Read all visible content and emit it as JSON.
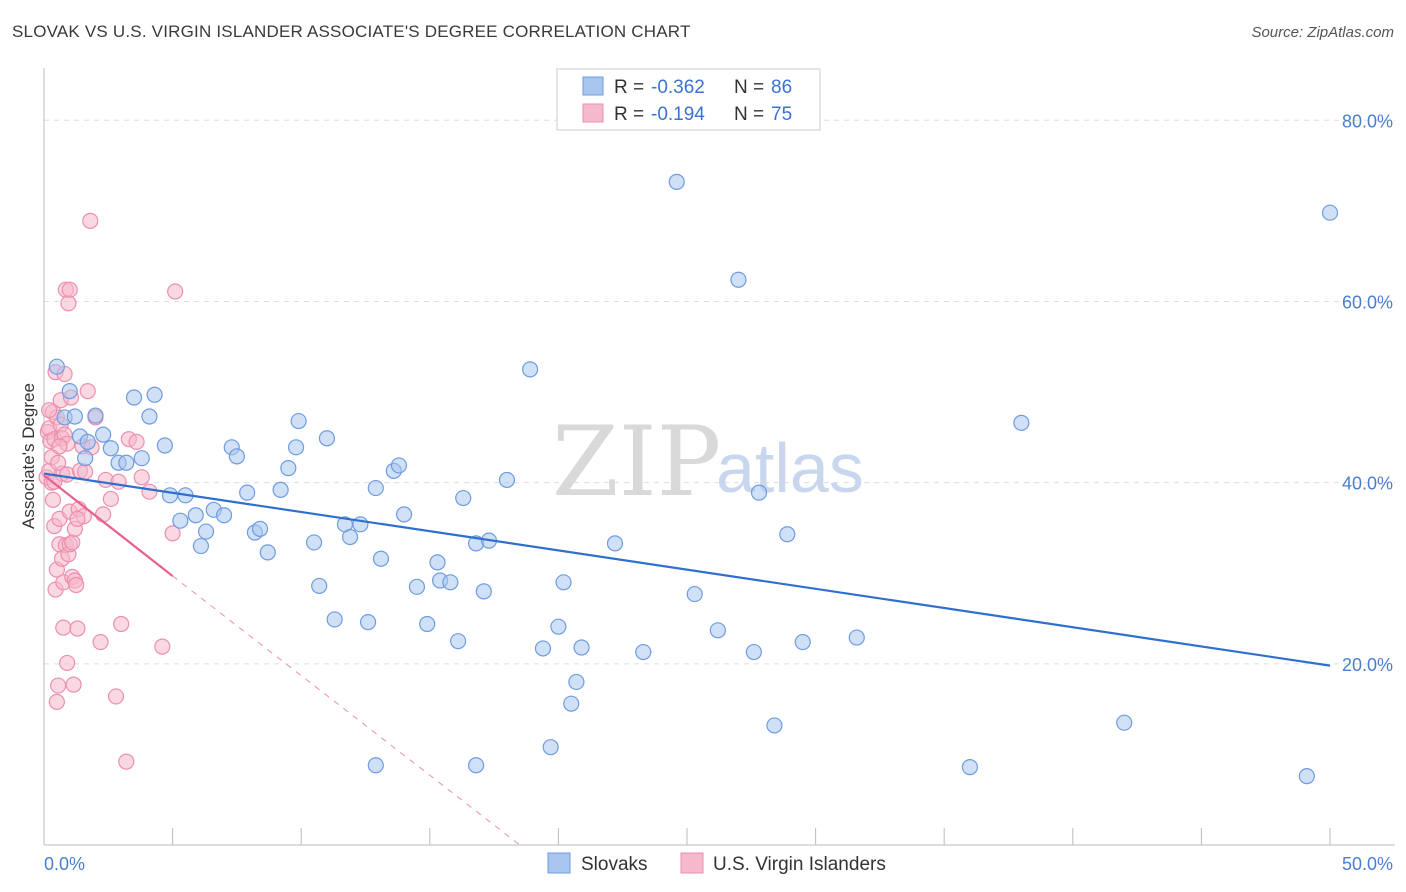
{
  "header": {
    "title": "SLOVAK VS U.S. VIRGIN ISLANDER ASSOCIATE'S DEGREE CORRELATION CHART",
    "source": "Source: ZipAtlas.com"
  },
  "watermark": {
    "part1": "ZIP",
    "part2": "atlas"
  },
  "legend": {
    "rows": [
      {
        "r_label": "R =",
        "r_value": "-0.362",
        "n_label": "N =",
        "n_value": "86"
      },
      {
        "r_label": "R =",
        "r_value": "-0.194",
        "n_label": "N =",
        "n_value": "75"
      }
    ]
  },
  "bottom_legend": {
    "items": [
      "Slovaks",
      "U.S. Virgin Islanders"
    ]
  },
  "colors": {
    "blue_fill": "#a9c6f0",
    "blue_stroke": "#6f9be0",
    "blue_line": "#2f6fd0",
    "pink_fill": "#f6b8cb",
    "pink_stroke": "#ec8fae",
    "pink_line": "#e8608f",
    "grid": "#dddddd",
    "tick_text": "#4a7fd0"
  },
  "chart_data": {
    "type": "scatter",
    "title": "SLOVAK VS U.S. VIRGIN ISLANDER ASSOCIATE'S DEGREE CORRELATION CHART",
    "xlabel": "",
    "ylabel": "Associate's Degree",
    "xlim": [
      0,
      50
    ],
    "ylim": [
      0,
      85
    ],
    "x_tick_labels": [
      "0.0%",
      "50.0%"
    ],
    "y_ticks": [
      20,
      40,
      60,
      80
    ],
    "y_tick_labels": [
      "20.0%",
      "40.0%",
      "60.0%",
      "80.0%"
    ],
    "grid": true,
    "legend_position": "top-center",
    "series": [
      {
        "name": "Slovaks",
        "r": -0.362,
        "n": 86,
        "trend": {
          "x": [
            0,
            50
          ],
          "y": [
            41.0,
            19.8
          ],
          "dashed_extension": false
        },
        "points": [
          [
            0.5,
            52.8
          ],
          [
            0.8,
            47.2
          ],
          [
            1.0,
            50.1
          ],
          [
            1.2,
            47.3
          ],
          [
            1.4,
            45.1
          ],
          [
            1.6,
            42.7
          ],
          [
            1.7,
            44.5
          ],
          [
            2.0,
            47.4
          ],
          [
            2.3,
            45.3
          ],
          [
            2.6,
            43.8
          ],
          [
            2.9,
            42.2
          ],
          [
            3.2,
            42.2
          ],
          [
            3.5,
            49.4
          ],
          [
            3.8,
            42.7
          ],
          [
            4.1,
            47.3
          ],
          [
            4.3,
            49.7
          ],
          [
            4.7,
            44.1
          ],
          [
            4.9,
            38.6
          ],
          [
            5.3,
            35.8
          ],
          [
            5.5,
            38.6
          ],
          [
            5.9,
            36.4
          ],
          [
            6.1,
            33.0
          ],
          [
            6.3,
            34.6
          ],
          [
            6.6,
            37.0
          ],
          [
            7.0,
            36.4
          ],
          [
            7.3,
            43.9
          ],
          [
            7.5,
            42.9
          ],
          [
            7.9,
            38.9
          ],
          [
            8.2,
            34.5
          ],
          [
            8.4,
            34.9
          ],
          [
            8.7,
            32.3
          ],
          [
            9.2,
            39.2
          ],
          [
            9.5,
            41.6
          ],
          [
            9.8,
            43.9
          ],
          [
            9.9,
            46.8
          ],
          [
            10.5,
            33.4
          ],
          [
            10.7,
            28.6
          ],
          [
            11.0,
            44.9
          ],
          [
            11.3,
            24.9
          ],
          [
            11.7,
            35.4
          ],
          [
            11.9,
            34.0
          ],
          [
            12.3,
            35.4
          ],
          [
            12.6,
            24.6
          ],
          [
            12.9,
            39.4
          ],
          [
            13.1,
            31.6
          ],
          [
            13.6,
            41.3
          ],
          [
            13.8,
            41.9
          ],
          [
            14.0,
            36.5
          ],
          [
            14.5,
            28.5
          ],
          [
            14.9,
            24.4
          ],
          [
            15.3,
            31.2
          ],
          [
            15.4,
            29.2
          ],
          [
            15.8,
            29.0
          ],
          [
            16.1,
            22.5
          ],
          [
            16.3,
            38.3
          ],
          [
            16.8,
            33.3
          ],
          [
            17.1,
            28.0
          ],
          [
            17.3,
            33.6
          ],
          [
            18.0,
            40.3
          ],
          [
            18.9,
            52.5
          ],
          [
            19.4,
            21.7
          ],
          [
            19.7,
            10.8
          ],
          [
            20.0,
            24.1
          ],
          [
            20.2,
            29.0
          ],
          [
            20.5,
            15.6
          ],
          [
            20.9,
            21.8
          ],
          [
            22.2,
            33.3
          ],
          [
            23.3,
            21.3
          ],
          [
            24.6,
            73.2
          ],
          [
            25.3,
            27.7
          ],
          [
            26.2,
            23.7
          ],
          [
            27.0,
            62.4
          ],
          [
            27.6,
            21.3
          ],
          [
            27.8,
            38.9
          ],
          [
            28.4,
            13.2
          ],
          [
            28.9,
            34.3
          ],
          [
            29.5,
            22.4
          ],
          [
            31.6,
            22.9
          ],
          [
            36.0,
            8.6
          ],
          [
            38.0,
            46.6
          ],
          [
            42.0,
            13.5
          ],
          [
            49.1,
            7.6
          ],
          [
            50.0,
            69.8
          ],
          [
            16.8,
            8.8
          ],
          [
            12.9,
            8.8
          ],
          [
            20.7,
            18.0
          ]
        ]
      },
      {
        "name": "U.S. Virgin Islanders",
        "r": -0.194,
        "n": 75,
        "trend": {
          "x": [
            0,
            5.0
          ],
          "y": [
            40.8,
            29.7
          ],
          "dashed_extension": true,
          "dashed_to": [
            18.5,
            0
          ]
        },
        "points": [
          [
            0.1,
            40.6
          ],
          [
            0.15,
            45.6
          ],
          [
            0.2,
            46.0
          ],
          [
            0.2,
            41.3
          ],
          [
            0.25,
            44.6
          ],
          [
            0.3,
            40.0
          ],
          [
            0.3,
            42.8
          ],
          [
            0.35,
            47.8
          ],
          [
            0.35,
            38.1
          ],
          [
            0.4,
            44.8
          ],
          [
            0.4,
            35.2
          ],
          [
            0.45,
            52.2
          ],
          [
            0.45,
            28.2
          ],
          [
            0.5,
            47.2
          ],
          [
            0.5,
            30.4
          ],
          [
            0.5,
            15.8
          ],
          [
            0.55,
            17.6
          ],
          [
            0.6,
            36.0
          ],
          [
            0.6,
            33.2
          ],
          [
            0.65,
            49.1
          ],
          [
            0.65,
            46.4
          ],
          [
            0.7,
            44.9
          ],
          [
            0.7,
            41.0
          ],
          [
            0.7,
            31.6
          ],
          [
            0.75,
            29.0
          ],
          [
            0.75,
            24.0
          ],
          [
            0.8,
            52.0
          ],
          [
            0.8,
            45.3
          ],
          [
            0.85,
            33.1
          ],
          [
            0.85,
            61.3
          ],
          [
            0.9,
            44.3
          ],
          [
            0.9,
            40.9
          ],
          [
            0.95,
            32.1
          ],
          [
            0.95,
            59.8
          ],
          [
            1.0,
            61.3
          ],
          [
            1.0,
            36.8
          ],
          [
            1.0,
            33.2
          ],
          [
            1.05,
            49.4
          ],
          [
            1.1,
            33.4
          ],
          [
            1.1,
            29.6
          ],
          [
            1.15,
            17.7
          ],
          [
            1.2,
            34.9
          ],
          [
            1.2,
            29.2
          ],
          [
            1.25,
            28.7
          ],
          [
            1.3,
            23.9
          ],
          [
            1.35,
            37.1
          ],
          [
            1.4,
            41.3
          ],
          [
            1.5,
            44.0
          ],
          [
            1.55,
            36.3
          ],
          [
            1.6,
            41.2
          ],
          [
            1.7,
            50.1
          ],
          [
            1.8,
            68.9
          ],
          [
            1.85,
            43.9
          ],
          [
            2.0,
            47.2
          ],
          [
            2.2,
            22.4
          ],
          [
            2.3,
            36.5
          ],
          [
            2.4,
            40.3
          ],
          [
            2.6,
            38.2
          ],
          [
            2.8,
            16.4
          ],
          [
            2.9,
            40.1
          ],
          [
            3.0,
            24.4
          ],
          [
            3.2,
            9.2
          ],
          [
            3.3,
            44.8
          ],
          [
            3.6,
            44.5
          ],
          [
            3.8,
            40.6
          ],
          [
            4.1,
            39.0
          ],
          [
            4.6,
            21.9
          ],
          [
            5.0,
            34.4
          ],
          [
            5.1,
            61.1
          ],
          [
            0.4,
            40.1
          ],
          [
            0.55,
            42.2
          ],
          [
            0.6,
            44.0
          ],
          [
            1.3,
            36.0
          ],
          [
            0.9,
            20.1
          ],
          [
            0.2,
            48.0
          ]
        ]
      }
    ]
  }
}
